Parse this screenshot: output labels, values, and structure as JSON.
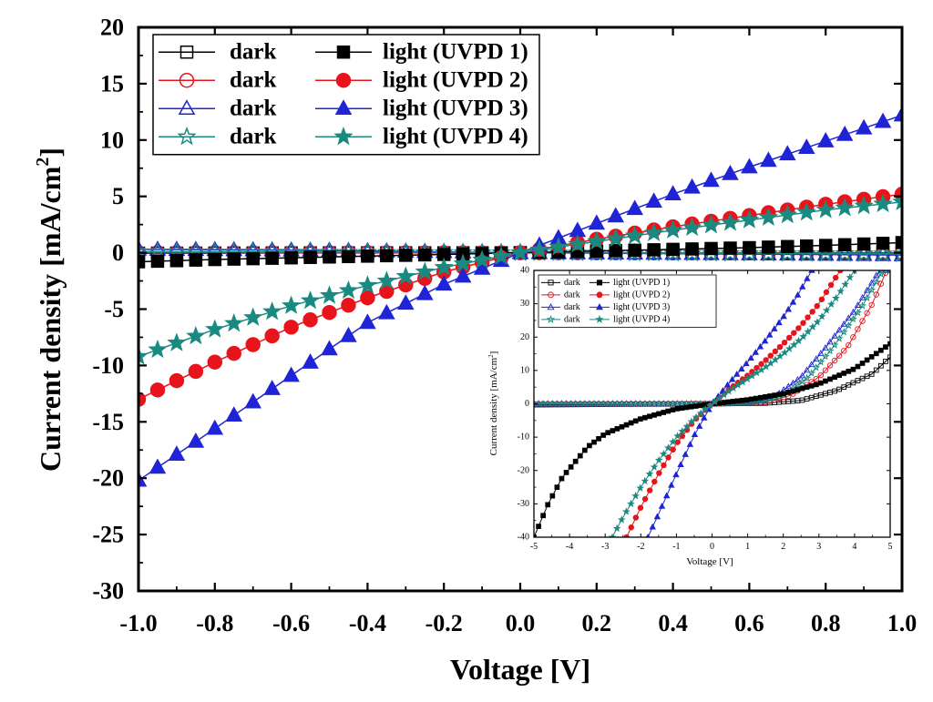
{
  "chart_data": [
    {
      "type": "line",
      "name": "main",
      "xlabel": "Voltage [V]",
      "ylabel_parts": [
        "Current density [mA/cm",
        "2",
        "]"
      ],
      "xlim": [
        -1.0,
        1.0
      ],
      "ylim": [
        -30,
        20
      ],
      "xticks": [
        -1.0,
        -0.8,
        -0.6,
        -0.4,
        -0.2,
        0.0,
        0.2,
        0.4,
        0.6,
        0.8,
        1.0
      ],
      "xtick_labels": [
        "-1.0",
        "-0.8",
        "-0.6",
        "-0.4",
        "-0.2",
        "0.0",
        "0.2",
        "0.4",
        "0.6",
        "0.8",
        "1.0"
      ],
      "yticks": [
        -30,
        -25,
        -20,
        -15,
        -10,
        -5,
        0,
        5,
        10,
        15,
        20
      ],
      "ytick_labels": [
        "-30",
        "-25",
        "-20",
        "-15",
        "-10",
        "-5",
        "0",
        "5",
        "10",
        "15",
        "20"
      ],
      "legend": {
        "position": "top-left",
        "rows": [
          {
            "dark_label": "dark",
            "light_label": "light (UVPD 1)",
            "color": "#000000",
            "marker": "square"
          },
          {
            "dark_label": "dark",
            "light_label": "light (UVPD 2)",
            "color": "#e8141c",
            "marker": "circle"
          },
          {
            "dark_label": "dark",
            "light_label": "light (UVPD 3)",
            "color": "#1f25d6",
            "marker": "triangle"
          },
          {
            "dark_label": "dark",
            "light_label": "light (UVPD 4)",
            "color": "#1a8a80",
            "marker": "star"
          }
        ]
      },
      "series": [
        {
          "name": "dark (UVPD 1)",
          "kind": "dark",
          "marker": "square",
          "color": "#000000",
          "x_range": [
            -1.0,
            1.0
          ],
          "points": [
            [
              -1.0,
              -0.04
            ],
            [
              -0.5,
              -0.01
            ],
            [
              0.0,
              0.0
            ],
            [
              0.5,
              0.0
            ],
            [
              1.0,
              0.0
            ]
          ]
        },
        {
          "name": "light (UVPD 1)",
          "kind": "light",
          "marker": "square",
          "color": "#000000",
          "x_range": [
            -1.0,
            1.0
          ],
          "points": [
            [
              -1.0,
              -0.8
            ],
            [
              -0.8,
              -0.6
            ],
            [
              -0.6,
              -0.45
            ],
            [
              -0.4,
              -0.3
            ],
            [
              -0.2,
              -0.15
            ],
            [
              0.0,
              0.0
            ],
            [
              0.2,
              0.15
            ],
            [
              0.4,
              0.3
            ],
            [
              0.6,
              0.45
            ],
            [
              0.8,
              0.65
            ],
            [
              1.0,
              0.9
            ]
          ]
        },
        {
          "name": "dark (UVPD 2)",
          "kind": "dark",
          "marker": "circle",
          "color": "#e8141c",
          "x_range": [
            -1.0,
            1.0
          ],
          "points": [
            [
              -1.0,
              0.02
            ],
            [
              0.0,
              0.0
            ],
            [
              1.0,
              -0.03
            ]
          ]
        },
        {
          "name": "light (UVPD 2)",
          "kind": "light",
          "marker": "circle",
          "color": "#e8141c",
          "x_range": [
            -1.0,
            1.0
          ],
          "points": [
            [
              -1.0,
              -13.0
            ],
            [
              -0.8,
              -9.7
            ],
            [
              -0.6,
              -6.6
            ],
            [
              -0.4,
              -4.0
            ],
            [
              -0.2,
              -1.7
            ],
            [
              0.0,
              0.0
            ],
            [
              0.2,
              1.2
            ],
            [
              0.4,
              2.3
            ],
            [
              0.6,
              3.3
            ],
            [
              0.8,
              4.3
            ],
            [
              1.0,
              5.2
            ]
          ]
        },
        {
          "name": "dark (UVPD 3)",
          "kind": "dark",
          "marker": "triangle",
          "color": "#1f25d6",
          "x_range": [
            -1.0,
            1.0
          ],
          "points": [
            [
              -1.0,
              0.3
            ],
            [
              -0.5,
              0.2
            ],
            [
              0.0,
              0.0
            ],
            [
              0.5,
              -0.1
            ],
            [
              1.0,
              -0.2
            ]
          ]
        },
        {
          "name": "light (UVPD 3)",
          "kind": "light",
          "marker": "triangle",
          "color": "#1f25d6",
          "x_range": [
            -1.0,
            1.0
          ],
          "points": [
            [
              -1.0,
              -20.2
            ],
            [
              -0.8,
              -15.6
            ],
            [
              -0.6,
              -10.9
            ],
            [
              -0.4,
              -6.2
            ],
            [
              -0.2,
              -2.8
            ],
            [
              0.0,
              0.0
            ],
            [
              0.2,
              2.6
            ],
            [
              0.4,
              5.2
            ],
            [
              0.6,
              7.6
            ],
            [
              0.8,
              9.9
            ],
            [
              1.0,
              12.2
            ]
          ]
        },
        {
          "name": "dark (UVPD 4)",
          "kind": "dark",
          "marker": "star",
          "color": "#1a8a80",
          "x_range": [
            -1.0,
            1.0
          ],
          "points": [
            [
              -1.0,
              0.1
            ],
            [
              0.0,
              0.0
            ],
            [
              1.0,
              -0.1
            ]
          ]
        },
        {
          "name": "light (UVPD 4)",
          "kind": "light",
          "marker": "star",
          "color": "#1a8a80",
          "x_range": [
            -1.0,
            1.0
          ],
          "points": [
            [
              -1.0,
              -9.2
            ],
            [
              -0.8,
              -6.8
            ],
            [
              -0.6,
              -4.7
            ],
            [
              -0.4,
              -2.9
            ],
            [
              -0.2,
              -1.3
            ],
            [
              0.0,
              0.0
            ],
            [
              0.2,
              1.0
            ],
            [
              0.4,
              2.0
            ],
            [
              0.6,
              2.9
            ],
            [
              0.8,
              3.8
            ],
            [
              1.0,
              4.5
            ]
          ]
        }
      ]
    },
    {
      "type": "line",
      "name": "inset",
      "xlabel": "Voltage [V]",
      "ylabel_parts": [
        "Current density [mA/cm",
        "2",
        "]"
      ],
      "xlim": [
        -5,
        5
      ],
      "ylim": [
        -40,
        40
      ],
      "xticks": [
        -5,
        -4,
        -3,
        -2,
        -1,
        0,
        1,
        2,
        3,
        4,
        5
      ],
      "xtick_labels": [
        "-5",
        "-4",
        "-3",
        "-2",
        "-1",
        "0",
        "1",
        "2",
        "3",
        "4",
        "5"
      ],
      "yticks": [
        -40,
        -30,
        -20,
        -10,
        0,
        10,
        20,
        30,
        40
      ],
      "ytick_labels": [
        "-40",
        "-30",
        "-20",
        "-10",
        "0",
        "10",
        "20",
        "30",
        "40"
      ],
      "legend": {
        "position": "top-left",
        "rows": [
          {
            "dark_label": "dark",
            "light_label": "light (UVPD 1)",
            "color": "#000000",
            "marker": "square"
          },
          {
            "dark_label": "dark",
            "light_label": "light (UVPD 2)",
            "color": "#e8141c",
            "marker": "circle"
          },
          {
            "dark_label": "dark",
            "light_label": "light (UVPD 3)",
            "color": "#1f25d6",
            "marker": "triangle"
          },
          {
            "dark_label": "dark",
            "light_label": "light (UVPD 4)",
            "color": "#1a8a80",
            "marker": "star"
          }
        ]
      },
      "series": [
        {
          "name": "dark (UVPD 1)",
          "kind": "dark",
          "marker": "square",
          "color": "#000000",
          "x_range": [
            -5,
            5
          ],
          "points": [
            [
              -5,
              -0.3
            ],
            [
              -2,
              -0.1
            ],
            [
              0,
              0
            ],
            [
              1.5,
              0.2
            ],
            [
              2.5,
              1.0
            ],
            [
              3.5,
              4.0
            ],
            [
              4.5,
              9.0
            ],
            [
              5,
              14.0
            ]
          ]
        },
        {
          "name": "light (UVPD 1)",
          "kind": "light",
          "marker": "square",
          "color": "#000000",
          "x_range": [
            -5,
            5
          ],
          "points": [
            [
              -5,
              -40
            ],
            [
              -4.6,
              -30
            ],
            [
              -4.2,
              -22
            ],
            [
              -3.5,
              -13
            ],
            [
              -3.0,
              -9
            ],
            [
              -2.0,
              -4.5
            ],
            [
              -1.0,
              -1.5
            ],
            [
              0,
              0
            ],
            [
              1.0,
              1.2
            ],
            [
              2.0,
              3.0
            ],
            [
              3.0,
              6.0
            ],
            [
              4.0,
              10.5
            ],
            [
              5.0,
              18.0
            ]
          ]
        },
        {
          "name": "dark (UVPD 2)",
          "kind": "dark",
          "marker": "circle",
          "color": "#e8141c",
          "x_range": [
            -5,
            5
          ],
          "points": [
            [
              -5,
              0
            ],
            [
              0,
              0
            ],
            [
              1.5,
              0.5
            ],
            [
              2.2,
              2.5
            ],
            [
              3.0,
              8.0
            ],
            [
              3.8,
              17.0
            ],
            [
              4.5,
              30.0
            ],
            [
              4.9,
              40.0
            ]
          ]
        },
        {
          "name": "light (UVPD 2)",
          "kind": "light",
          "marker": "circle",
          "color": "#e8141c",
          "x_range": [
            -2.4,
            3.6
          ],
          "points": [
            [
              -2.4,
              -40
            ],
            [
              -2.0,
              -31
            ],
            [
              -1.5,
              -21
            ],
            [
              -1.0,
              -12
            ],
            [
              -0.5,
              -5
            ],
            [
              0,
              0
            ],
            [
              0.5,
              4.5
            ],
            [
              1.0,
              8.5
            ],
            [
              1.5,
              13.0
            ],
            [
              2.0,
              18.0
            ],
            [
              2.5,
              23.5
            ],
            [
              3.0,
              30.0
            ],
            [
              3.6,
              40.0
            ]
          ]
        },
        {
          "name": "dark (UVPD 3)",
          "kind": "dark",
          "marker": "triangle",
          "color": "#1f25d6",
          "x_range": [
            -5,
            5
          ],
          "points": [
            [
              -5,
              0
            ],
            [
              0,
              0
            ],
            [
              1.2,
              0.5
            ],
            [
              1.8,
              2.5
            ],
            [
              2.5,
              8.0
            ],
            [
              3.2,
              17.0
            ],
            [
              4.0,
              28.0
            ],
            [
              4.7,
              40.0
            ]
          ]
        },
        {
          "name": "light (UVPD 3)",
          "kind": "light",
          "marker": "triangle",
          "color": "#1f25d6",
          "x_range": [
            -1.8,
            2.8
          ],
          "points": [
            [
              -1.8,
              -40
            ],
            [
              -1.5,
              -33
            ],
            [
              -1.0,
              -21
            ],
            [
              -0.5,
              -9.5
            ],
            [
              0,
              0
            ],
            [
              0.5,
              6.5
            ],
            [
              1.0,
              12.5
            ],
            [
              1.5,
              19.0
            ],
            [
              2.0,
              26.0
            ],
            [
              2.4,
              32.5
            ],
            [
              2.8,
              40.0
            ]
          ]
        },
        {
          "name": "dark (UVPD 4)",
          "kind": "dark",
          "marker": "star",
          "color": "#1a8a80",
          "x_range": [
            -5,
            5
          ],
          "points": [
            [
              -5,
              0
            ],
            [
              0,
              0
            ],
            [
              1.3,
              0.5
            ],
            [
              2.0,
              2.5
            ],
            [
              2.7,
              8.0
            ],
            [
              3.4,
              17.0
            ],
            [
              4.2,
              29.0
            ],
            [
              4.8,
              40.0
            ]
          ]
        },
        {
          "name": "light (UVPD 4)",
          "kind": "light",
          "marker": "star",
          "color": "#1a8a80",
          "x_range": [
            -2.8,
            4.0
          ],
          "points": [
            [
              -2.8,
              -40
            ],
            [
              -2.5,
              -34
            ],
            [
              -2.0,
              -25
            ],
            [
              -1.5,
              -17
            ],
            [
              -1.0,
              -10
            ],
            [
              -0.5,
              -4.5
            ],
            [
              0,
              0
            ],
            [
              0.5,
              4
            ],
            [
              1.0,
              7.5
            ],
            [
              1.5,
              11.0
            ],
            [
              2.0,
              15.0
            ],
            [
              2.5,
              19.5
            ],
            [
              3.0,
              25.0
            ],
            [
              3.5,
              32.0
            ],
            [
              4.0,
              40.0
            ]
          ]
        }
      ]
    }
  ]
}
